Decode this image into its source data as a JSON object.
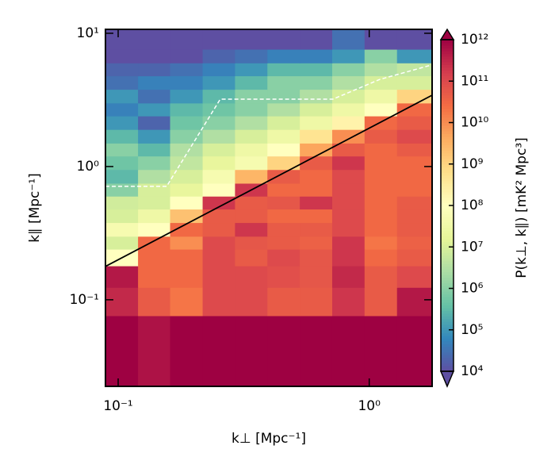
{
  "chart_data": {
    "type": "heatmap",
    "xlabel": "k⊥  [Mpc⁻¹]",
    "ylabel": "k∥  [Mpc⁻¹]",
    "colorbar_label": "P(k⊥, k∥) [mK² Mpc³]",
    "x_log": true,
    "y_log": true,
    "color_log": true,
    "xlim": [
      0.089,
      1.78
    ],
    "ylim": [
      0.0224,
      10.7
    ],
    "clim": [
      10000,
      1000000000000
    ],
    "xticks": [
      {
        "value": 0.1,
        "label": "10⁻¹"
      },
      {
        "value": 1,
        "label": "10⁰"
      }
    ],
    "yticks": [
      {
        "value": 0.1,
        "label": "10⁻¹"
      },
      {
        "value": 1,
        "label": "10⁰"
      },
      {
        "value": 10,
        "label": "10¹"
      }
    ],
    "cticks": [
      {
        "value": 10000,
        "label": "10⁴"
      },
      {
        "value": 100000,
        "label": "10⁵"
      },
      {
        "value": 1000000,
        "label": "10⁶"
      },
      {
        "value": 10000000,
        "label": "10⁷"
      },
      {
        "value": 100000000,
        "label": "10⁸"
      },
      {
        "value": 1000000000,
        "label": "10⁹"
      },
      {
        "value": 10000000000,
        "label": "10¹⁰"
      },
      {
        "value": 100000000000,
        "label": "10¹¹"
      },
      {
        "value": 1000000000000,
        "label": "10¹²"
      }
    ],
    "colormap": [
      "#5e4fa2",
      "#3288bd",
      "#66c2a5",
      "#abdda4",
      "#e6f598",
      "#ffffbf",
      "#fee08b",
      "#fdae61",
      "#f46d43",
      "#d53e4f",
      "#9e0142"
    ],
    "x_bins": [
      0.089,
      0.12,
      0.161,
      0.217,
      0.292,
      0.393,
      0.529,
      0.712,
      0.958,
      1.29,
      1.78
    ],
    "y_bins": [
      0.0224,
      0.076,
      0.124,
      0.18,
      0.24,
      0.3,
      0.38,
      0.48,
      0.6,
      0.75,
      0.95,
      1.2,
      1.5,
      1.9,
      2.4,
      3.0,
      3.8,
      4.8,
      6.0,
      7.6,
      10.7
    ],
    "values": [
      [
        1000000000000.0,
        600000000000.0,
        1000000000000.0,
        1000000000000.0,
        1000000000000.0,
        1000000000000.0,
        1000000000000.0,
        1000000000000.0,
        1000000000000.0,
        1000000000000.0
      ],
      [
        300000000000.0,
        50000000000.0,
        20000000000.0,
        100000000000.0,
        100000000000.0,
        50000000000.0,
        50000000000.0,
        200000000000.0,
        50000000000.0,
        500000000000.0
      ],
      [
        500000000000.0,
        30000000000.0,
        30000000000.0,
        100000000000.0,
        100000000000.0,
        80000000000.0,
        60000000000.0,
        300000000000.0,
        50000000000.0,
        100000000000.0
      ],
      [
        100000000.0,
        30000000000.0,
        30000000000.0,
        100000000000.0,
        50000000000.0,
        100000000000.0,
        60000000000.0,
        200000000000.0,
        30000000000.0,
        50000000000.0
      ],
      [
        10000000.0,
        30000000000.0,
        10000000000.0,
        100000000000.0,
        60000000000.0,
        50000000000.0,
        40000000000.0,
        200000000000.0,
        20000000000.0,
        40000000000.0
      ],
      [
        50000000.0,
        100000000.0,
        30000000000.0,
        50000000000.0,
        200000000000.0,
        50000000000.0,
        50000000000.0,
        100000000000.0,
        30000000000.0,
        50000000000.0
      ],
      [
        10000000.0,
        30000000.0,
        2000000000.0,
        50000000000.0,
        50000000000.0,
        30000000000.0,
        30000000000.0,
        100000000000.0,
        30000000000.0,
        50000000000.0
      ],
      [
        8000000.0,
        10000000.0,
        100000000.0,
        200000000000.0,
        50000000000.0,
        60000000000.0,
        200000000000.0,
        100000000000.0,
        30000000000.0,
        50000000000.0
      ],
      [
        1000000.0,
        10000000.0,
        20000000.0,
        100000000.0,
        200000000000.0,
        30000000000.0,
        30000000000.0,
        100000000000.0,
        30000000000.0,
        30000000000.0
      ],
      [
        300000.0,
        3000000.0,
        10000000.0,
        50000000.0,
        3000000000.0,
        50000000000.0,
        30000000000.0,
        100000000000.0,
        30000000000.0,
        30000000000.0
      ],
      [
        500000.0,
        1000000.0,
        5000000.0,
        20000000.0,
        50000000.0,
        1000000000.0,
        50000000000.0,
        200000000000.0,
        30000000000.0,
        30000000000.0
      ],
      [
        1000000.0,
        300000.0,
        3000000.0,
        10000000.0,
        30000000.0,
        100000000.0,
        5000000000.0,
        50000000000.0,
        30000000000.0,
        50000000000.0
      ],
      [
        300000.0,
        100000.0,
        1000000.0,
        3000000.0,
        10000000.0,
        30000000.0,
        500000000.0,
        10000000000.0,
        50000000000.0,
        100000000000.0
      ],
      [
        100000.0,
        20000.0,
        500000.0,
        1000000.0,
        3000000.0,
        10000000.0,
        30000000.0,
        200000000.0,
        30000000000.0,
        50000000000.0
      ],
      [
        50000.0,
        100000.0,
        300000.0,
        500000.0,
        1000000.0,
        3000000.0,
        10000000.0,
        30000000.0,
        100000000.0,
        30000000000.0
      ],
      [
        100000.0,
        30000.0,
        100000.0,
        300000.0,
        1000000.0,
        1000000.0,
        3000000.0,
        10000000.0,
        30000000.0,
        1000000000.0
      ],
      [
        30000.0,
        50000.0,
        50000.0,
        100000.0,
        300000.0,
        1000000.0,
        1000000.0,
        3000000.0,
        10000000.0,
        10000000.0
      ],
      [
        20000.0,
        20000.0,
        30000.0,
        50000.0,
        100000.0,
        300000.0,
        300000.0,
        1000000.0,
        3000000.0,
        5000000.0
      ],
      [
        10000.0,
        10000.0,
        10000.0,
        20000.0,
        30000.0,
        50000.0,
        50000.0,
        100000.0,
        1000000.0,
        100000.0
      ],
      [
        10000.0,
        10000.0,
        10000.0,
        10000.0,
        10000.0,
        10000.0,
        10000.0,
        30000.0,
        10000.0,
        10000.0
      ]
    ],
    "lines": [
      {
        "color": "#000000",
        "dash": false,
        "x": [
          0.089,
          1.78
        ],
        "y": [
          0.178,
          3.43
        ]
      },
      {
        "color": "#ffffff",
        "dash": true,
        "x": [
          0.089,
          0.156,
          0.255,
          0.716,
          1.1,
          1.78
        ],
        "y": [
          0.71,
          0.71,
          3.2,
          3.2,
          4.5,
          5.8
        ]
      }
    ]
  }
}
